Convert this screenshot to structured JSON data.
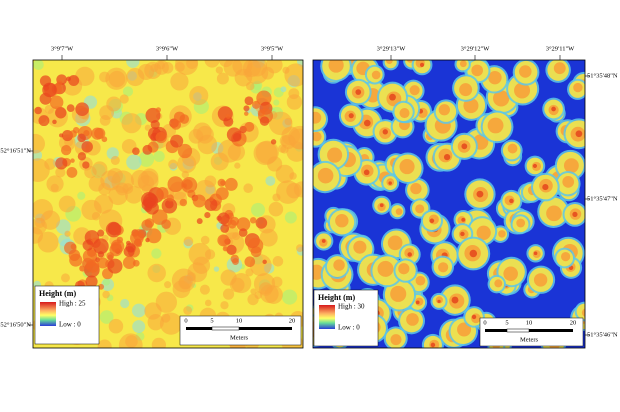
{
  "maps": [
    {
      "top_labels": [
        "3°9'7\"W",
        "3°9'6\"W",
        "3°9'5\"W"
      ],
      "side_labels": [
        "52°16'51\"N",
        "52°16'50\"N"
      ],
      "legend": {
        "title": "Height (m)",
        "high": "High : 25",
        "low": "Low : 0"
      },
      "scale_bar": {
        "ticks": [
          "0",
          "5",
          "10",
          "20"
        ],
        "unit": "Meters"
      }
    },
    {
      "top_labels": [
        "3°29'13\"W",
        "3°29'12\"W",
        "3°29'11\"W"
      ],
      "side_labels": [
        "51°35'48\"N",
        "51°35'47\"N",
        "51°35'46\"N"
      ],
      "legend": {
        "title": "Height (m)",
        "high": "High : 30",
        "low": "Low : 0"
      },
      "scale_bar": {
        "ticks": [
          "0",
          "5",
          "10",
          "20"
        ],
        "unit": "Meters"
      }
    }
  ]
}
